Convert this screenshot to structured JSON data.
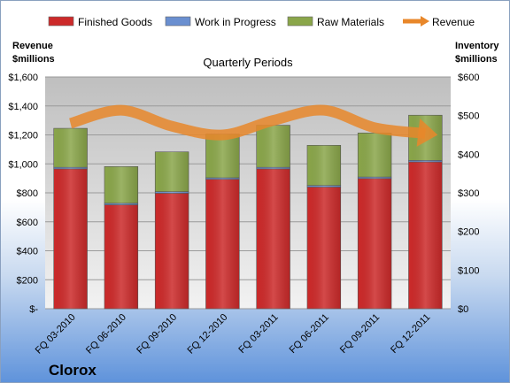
{
  "chart_data": {
    "type": "bar",
    "title": "Quarterly Periods",
    "company": "Clorox",
    "categories": [
      "FQ 03-2010",
      "FQ 06-2010",
      "FQ 09-2010",
      "FQ 12-2010",
      "FQ 03-2011",
      "FQ 06-2011",
      "FQ 09-2011",
      "FQ 12-2011"
    ],
    "stacked": true,
    "series": [
      {
        "name": "Finished Goods",
        "axis": "right",
        "color": "#cc2a2a",
        "values": [
          362,
          269,
          299,
          335,
          362,
          315,
          337,
          380
        ]
      },
      {
        "name": "Work in Progress",
        "axis": "right",
        "color": "#6a8fd0",
        "values": [
          4,
          4,
          4,
          4,
          4,
          4,
          4,
          4
        ]
      },
      {
        "name": "Raw Materials",
        "axis": "right",
        "color": "#8aa64a",
        "values": [
          101,
          95,
          103,
          113,
          109,
          104,
          114,
          117
        ]
      },
      {
        "name": "Revenue",
        "axis": "left",
        "type": "line",
        "color": "#e8872a",
        "values": [
          1280,
          1370,
          1260,
          1200,
          1300,
          1370,
          1250,
          1210
        ]
      }
    ],
    "left_axis": {
      "label_line1": "Revenue",
      "label_line2": "$millions",
      "ylim": [
        0,
        1600
      ],
      "ticks": [
        "$-",
        "$200",
        "$400",
        "$600",
        "$800",
        "$1,000",
        "$1,200",
        "$1,400",
        "$1,600"
      ]
    },
    "right_axis": {
      "label_line1": "Inventory",
      "label_line2": "$millions",
      "ylim": [
        0,
        600
      ],
      "ticks": [
        "$0",
        "$100",
        "$200",
        "$300",
        "$400",
        "$500",
        "$600"
      ]
    },
    "legend_position": "top",
    "grid": true
  }
}
